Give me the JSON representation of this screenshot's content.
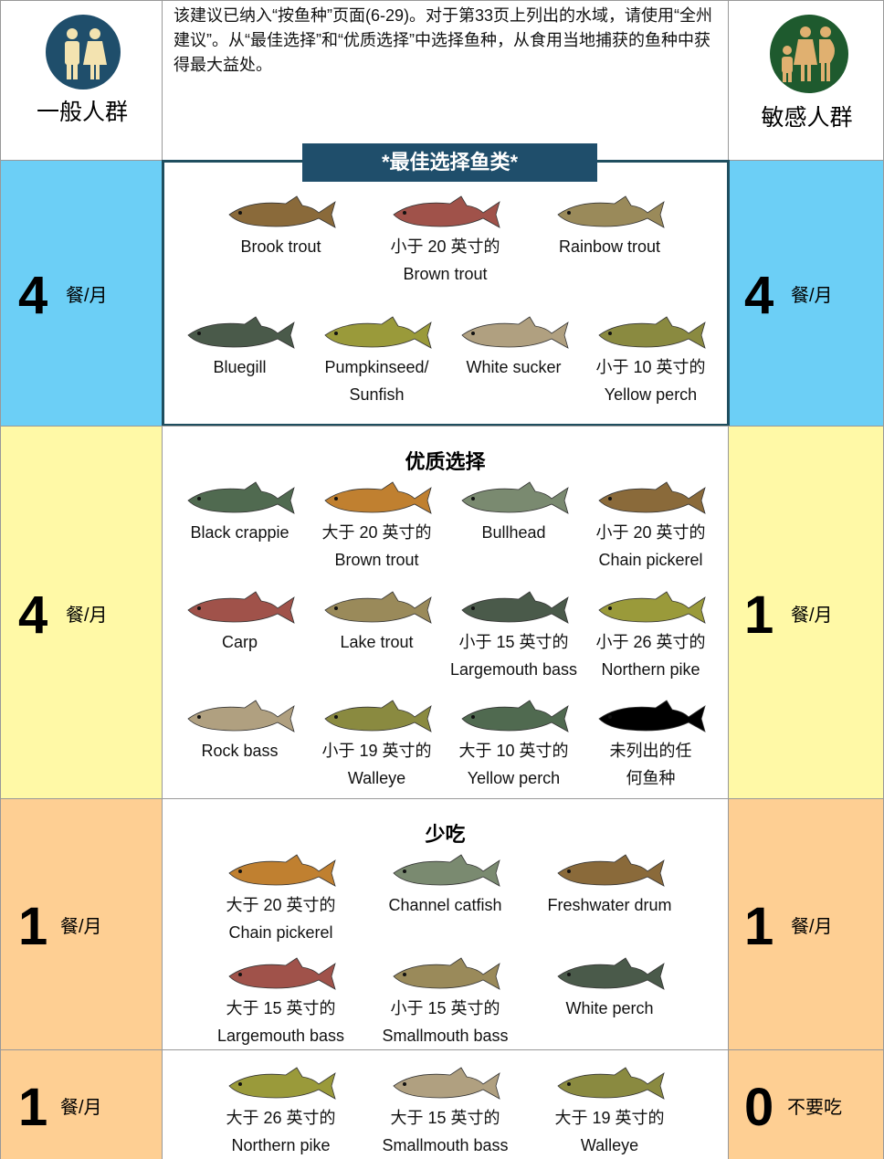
{
  "header": {
    "general_label": "一般人群",
    "sensitive_label": "敏感人群",
    "intro": "该建议已纳入“按鱼种”页面(6-29)。对于第33页上列出的水域，请使用“全州建议”。从“最佳选择”和“优质选择”中选择鱼种，从食用当地捕获的鱼种中获得最大益处。"
  },
  "sections": [
    {
      "general": {
        "count": 4,
        "unit": "餐/月"
      },
      "sensitive": {
        "count": 4,
        "unit": "餐/月"
      },
      "title": "*最佳选择鱼类*",
      "rows": [
        [
          {
            "lines": [
              "Brook trout"
            ]
          },
          {
            "lines": [
              "小于 20 英寸的",
              "Brown trout"
            ]
          },
          {
            "lines": [
              "Rainbow trout"
            ]
          }
        ],
        [
          {
            "lines": [
              "Bluegill"
            ]
          },
          {
            "lines": [
              "Pumpkinseed/",
              "Sunfish"
            ]
          },
          {
            "lines": [
              "White sucker"
            ]
          },
          {
            "lines": [
              "小于 10 英寸的",
              "Yellow perch"
            ]
          }
        ]
      ]
    },
    {
      "general": {
        "count": 4,
        "unit": "餐/月"
      },
      "sensitive": {
        "count": 1,
        "unit": "餐/月"
      },
      "title": "优质选择",
      "rows": [
        [
          {
            "lines": [
              "Black crappie"
            ]
          },
          {
            "lines": [
              "大于 20 英寸的",
              "Brown trout"
            ]
          },
          {
            "lines": [
              "Bullhead"
            ]
          },
          {
            "lines": [
              "小于 20 英寸的",
              "Chain pickerel"
            ]
          }
        ],
        [
          {
            "lines": [
              "Carp"
            ]
          },
          {
            "lines": [
              "Lake trout"
            ]
          },
          {
            "lines": [
              "小于 15 英寸的",
              "Largemouth bass"
            ]
          },
          {
            "lines": [
              "小于 26 英寸的",
              "Northern pike"
            ]
          }
        ],
        [
          {
            "lines": [
              "Rock bass"
            ]
          },
          {
            "lines": [
              "小于 19 英寸的",
              "Walleye"
            ]
          },
          {
            "lines": [
              "大于 10 英寸的",
              "Yellow perch"
            ]
          },
          {
            "lines": [
              "未列出的任",
              "何鱼种"
            ]
          }
        ]
      ]
    },
    {
      "general": {
        "count": 1,
        "unit": "餐/月"
      },
      "sensitive": {
        "count": 1,
        "unit": "餐/月"
      },
      "title": "少吃",
      "rows": [
        [
          {
            "lines": [
              "大于 20 英寸的",
              "Chain pickerel"
            ]
          },
          {
            "lines": [
              "Channel catfish"
            ]
          },
          {
            "lines": [
              "Freshwater drum"
            ]
          }
        ],
        [
          {
            "lines": [
              "大于 15 英寸的",
              "Largemouth bass"
            ]
          },
          {
            "lines": [
              "小于 15 英寸的",
              "Smallmouth bass"
            ]
          },
          {
            "lines": [
              "White perch"
            ]
          }
        ]
      ]
    },
    {
      "general": {
        "count": 1,
        "unit": "餐/月"
      },
      "sensitive": {
        "count": 0,
        "unit": "不要吃"
      },
      "rows": [
        [
          {
            "lines": [
              "大于 26 英寸的",
              "Northern pike"
            ]
          },
          {
            "lines": [
              "大于 15 英寸的",
              "Smallmouth bass"
            ]
          },
          {
            "lines": [
              "大于 19 英寸的",
              "Walleye"
            ]
          }
        ]
      ]
    }
  ]
}
